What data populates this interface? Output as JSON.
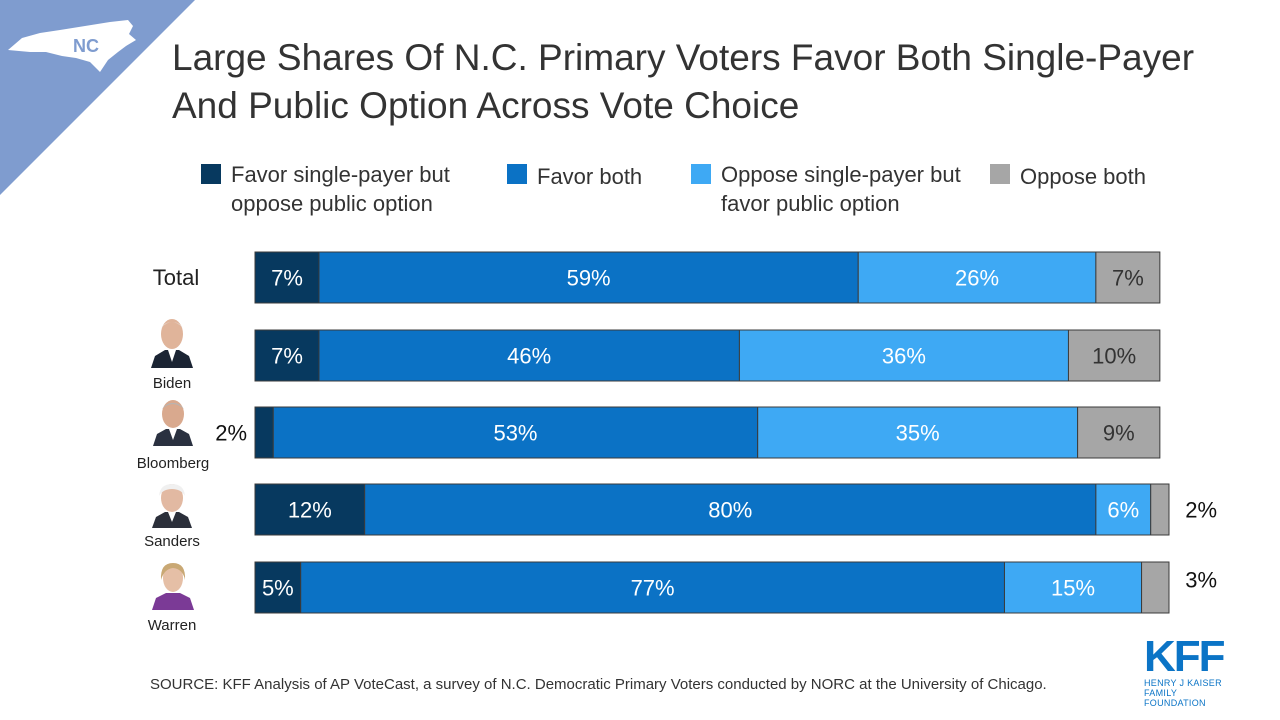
{
  "badge": {
    "state": "NC"
  },
  "title": "Large Shares Of N.C. Primary Voters Favor Both Single-Payer And Public Option Across Vote Choice",
  "legend": [
    {
      "label": "Favor single-payer but oppose public option",
      "color": "#07395f"
    },
    {
      "label": "Favor both",
      "color": "#0b72c5"
    },
    {
      "label": "Oppose single-payer but favor public option",
      "color": "#3ea9f4"
    },
    {
      "label": "Oppose both",
      "color": "#a6a6a6"
    }
  ],
  "chart_data": {
    "type": "bar",
    "orientation": "horizontal",
    "stacked": true,
    "categories": [
      "Total",
      "Biden",
      "Bloomberg",
      "Sanders",
      "Warren"
    ],
    "series": [
      {
        "name": "Favor single-payer but oppose public option",
        "values": [
          7,
          7,
          2,
          12,
          5
        ],
        "labels": [
          "7%",
          "7%",
          "2%",
          "12%",
          "5%"
        ]
      },
      {
        "name": "Favor both",
        "values": [
          59,
          46,
          53,
          80,
          77
        ],
        "labels": [
          "59%",
          "46%",
          "53%",
          "80%",
          "77%"
        ]
      },
      {
        "name": "Oppose single-payer but favor public option",
        "values": [
          26,
          36,
          35,
          6,
          15
        ],
        "labels": [
          "26%",
          "36%",
          "35%",
          "6%",
          "15%"
        ]
      },
      {
        "name": "Oppose both",
        "values": [
          7,
          10,
          9,
          2,
          3
        ],
        "labels": [
          "7%",
          "10%",
          "9%",
          "2%",
          "3%"
        ]
      }
    ],
    "colors": [
      "#07395f",
      "#0b72c5",
      "#3ea9f4",
      "#a6a6a6"
    ],
    "xlim": [
      0,
      100
    ],
    "grid": false,
    "legend_position": "top"
  },
  "source": "SOURCE: KFF Analysis of AP VoteCast, a survey of N.C. Democratic Primary Voters conducted by NORC at the University of Chicago.",
  "logo": {
    "text": "KFF",
    "sub_line1": "HENRY J KAISER",
    "sub_line2": "FAMILY FOUNDATION"
  }
}
